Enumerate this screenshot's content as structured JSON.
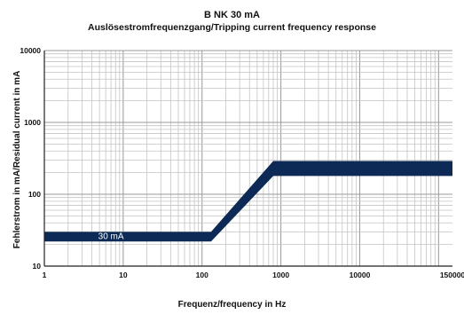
{
  "chart_data": {
    "type": "area",
    "title": "B NK 30 mA",
    "subtitle": "Auslösestromfrequenzgang/Tripping current frequency response",
    "xlabel": "Frequenz/frequency in Hz",
    "ylabel": "Fehlerstrom in mA/Residual current in mA",
    "x_scale": "log",
    "y_scale": "log",
    "xlim": [
      1,
      150000
    ],
    "ylim": [
      10,
      10000
    ],
    "x_ticks": [
      "1",
      "10",
      "100",
      "1000",
      "10000",
      "150000"
    ],
    "y_ticks": [
      "10",
      "100",
      "1000",
      "10000"
    ],
    "grid": true,
    "band_color": "#0c2a55",
    "band": {
      "x": [
        1,
        100,
        130,
        800,
        1000,
        150000
      ],
      "upper": [
        30,
        30,
        30,
        290,
        290,
        290
      ],
      "lower": [
        22,
        22,
        22,
        180,
        180,
        180
      ]
    },
    "annotations": [
      {
        "text": "30 mA",
        "x": 7,
        "y": 26
      }
    ]
  }
}
